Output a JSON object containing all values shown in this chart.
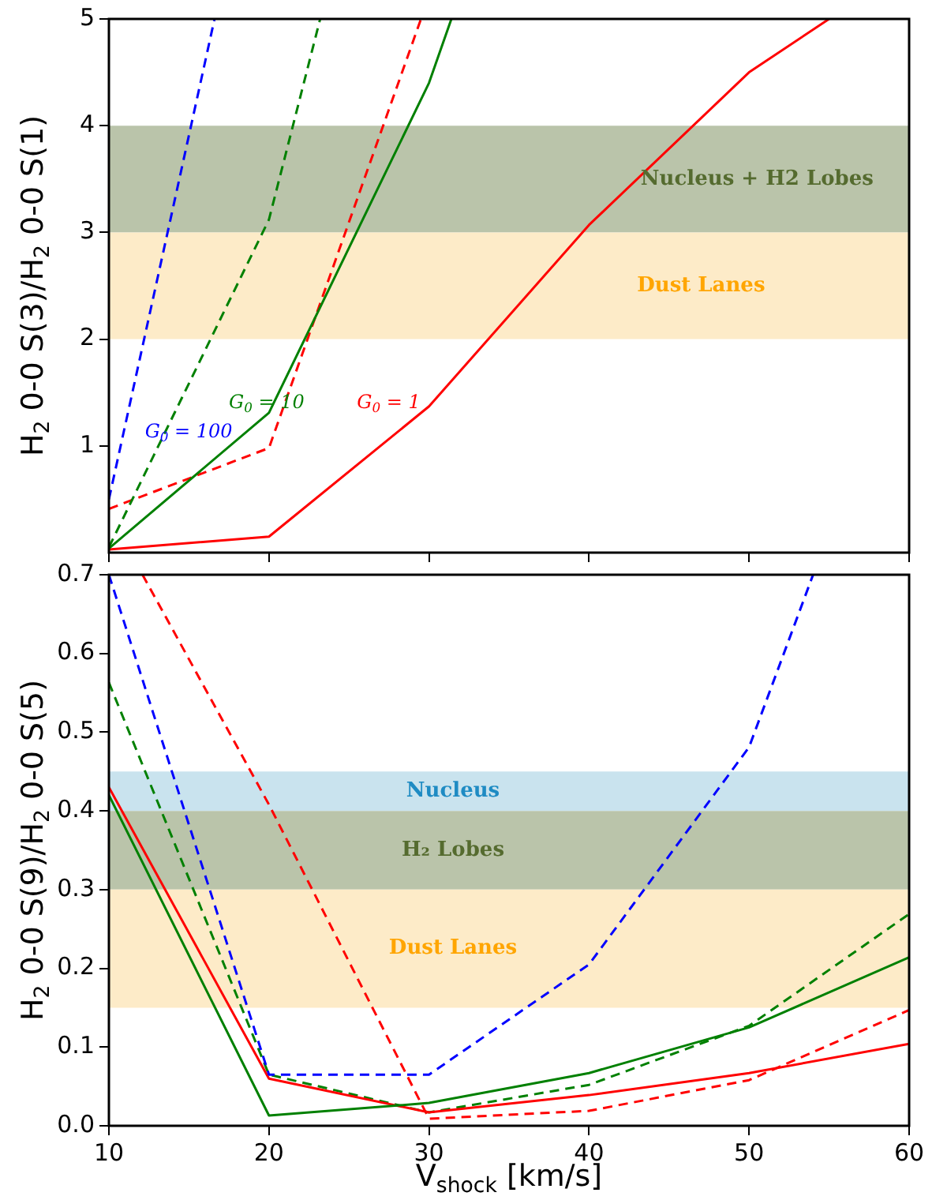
{
  "chart_data": [
    {
      "type": "line",
      "ylabel": "H$_{2}$ 0-0 S(3)/H$_{2}$ 0-0 S(1)",
      "xlim": [
        10,
        60
      ],
      "xticks": [
        10,
        20,
        30,
        40,
        50,
        60
      ],
      "ylim": [
        0,
        5
      ],
      "yticks": [
        1,
        2,
        3,
        4,
        5
      ],
      "tick_labels": "y",
      "grid": false,
      "legend": false,
      "marker": "none",
      "series": [
        {
          "color": "#0000ff",
          "line_style": "dashed",
          "x": [
            10,
            16.6
          ],
          "values": [
            0.5,
            5
          ]
        },
        {
          "color": "#008000",
          "line_style": "solid",
          "x": [
            10,
            20,
            30,
            31.4
          ],
          "values": [
            0.04,
            1.31,
            4.4,
            5
          ]
        },
        {
          "color": "#ff0000",
          "line_style": "solid",
          "x": [
            10,
            20,
            30,
            40,
            50,
            55
          ],
          "values": [
            0.03,
            0.15,
            1.37,
            3.07,
            4.5,
            5
          ]
        },
        {
          "color": "#008000",
          "line_style": "dashed",
          "x": [
            10,
            20,
            23.2
          ],
          "values": [
            0.05,
            3.12,
            5
          ]
        },
        {
          "color": "#ff0000",
          "line_style": "dashed",
          "x": [
            10,
            20,
            29.5
          ],
          "values": [
            0.41,
            0.98,
            5
          ]
        }
      ],
      "bands": [
        {
          "axis": "y",
          "from": 3,
          "to": 4,
          "label": "Nucleus + H2 Lobes",
          "color": "#bac4aa"
        },
        {
          "axis": "y",
          "from": 2,
          "to": 3,
          "label": "Dust Lanes",
          "color": "#fdebc8"
        }
      ],
      "annotations": [
        "G$_{0}$ = 100",
        "G$_{0}$ = 10",
        "G$_{0}$ = 1"
      ]
    },
    {
      "type": "line",
      "xlabel": "V$_{shock}$ [km/s]",
      "ylabel": "H$_{2}$ 0-0 S(9)/H$_{2}$ 0-0 S(5)",
      "xlim": [
        10,
        60
      ],
      "xticks": [
        10,
        20,
        30,
        40,
        50,
        60
      ],
      "ylim": [
        0,
        0.7
      ],
      "yticks": [
        {
          "value": 0,
          "label": "0.0"
        },
        0.1,
        0.2,
        0.3,
        0.4,
        0.5,
        0.6,
        0.7
      ],
      "grid": false,
      "legend": false,
      "marker": "none",
      "series": [
        {
          "color": "#0000ff",
          "line_style": "dashed",
          "x": [
            10,
            20,
            30,
            40,
            50,
            54
          ],
          "values": [
            0.7,
            0.065,
            0.065,
            0.205,
            0.481,
            0.7
          ]
        },
        {
          "color": "#008000",
          "line_style": "solid",
          "x": [
            10,
            20,
            30,
            40,
            50,
            60
          ],
          "values": [
            0.42,
            0.013,
            0.029,
            0.067,
            0.125,
            0.214
          ]
        },
        {
          "color": "#ff0000",
          "line_style": "solid",
          "x": [
            10,
            20,
            30,
            40,
            50,
            60
          ],
          "values": [
            0.43,
            0.06,
            0.017,
            0.039,
            0.067,
            0.104
          ]
        },
        {
          "color": "#008000",
          "line_style": "dashed",
          "x": [
            10,
            20,
            30,
            40,
            50,
            60
          ],
          "values": [
            0.563,
            0.065,
            0.017,
            0.052,
            0.127,
            0.269
          ]
        },
        {
          "color": "#ff0000",
          "line_style": "dashed",
          "x": [
            12.1,
            20,
            30,
            40,
            50,
            60
          ],
          "values": [
            0.7,
            0.408,
            0.009,
            0.019,
            0.058,
            0.147
          ]
        }
      ],
      "bands": [
        {
          "axis": "y",
          "from": 0.4,
          "to": 0.45,
          "label": "Nucleus",
          "color": "#c9e3ee"
        },
        {
          "axis": "y",
          "from": 0.3,
          "to": 0.4,
          "label": "H₂ Lobes",
          "color": "#bac4aa"
        },
        {
          "axis": "y",
          "from": 0.15,
          "to": 0.3,
          "label": "Dust Lanes",
          "color": "#fdebc8"
        }
      ]
    }
  ]
}
